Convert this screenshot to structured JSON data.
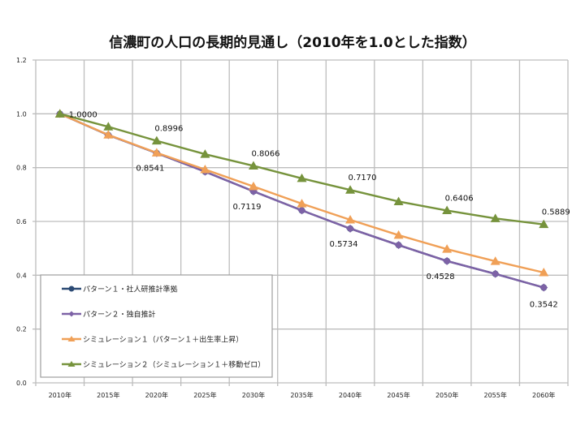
{
  "chart_data": {
    "type": "line",
    "title": "信濃町の人口の長期的見通し（2010年を1.0とした指数）",
    "xlabel": "",
    "ylabel": "",
    "categories": [
      "2010年",
      "2015年",
      "2020年",
      "2025年",
      "2030年",
      "2035年",
      "2040年",
      "2045年",
      "2050年",
      "2055年",
      "2060年"
    ],
    "ylim": [
      0.0,
      1.2
    ],
    "yticks": [
      "0.0",
      "0.2",
      "0.4",
      "0.6",
      "0.8",
      "1.0",
      "1.2"
    ],
    "grid": true,
    "legend_position": "bottom-left",
    "series": [
      {
        "name": "パターン１・社人研推計準拠",
        "color": "#2b4a74",
        "marker": "circle",
        "values": [
          1.0,
          0.921,
          0.8541,
          0.785,
          0.7119,
          0.641,
          0.5734,
          0.512,
          0.4528,
          0.405,
          0.3542
        ]
      },
      {
        "name": "パターン２・独自推計",
        "color": "#7d62a6",
        "marker": "diamond",
        "values": [
          1.0,
          0.921,
          0.8541,
          0.785,
          0.7119,
          0.641,
          0.5734,
          0.512,
          0.4528,
          0.405,
          0.3542
        ]
      },
      {
        "name": "シミュレーション１（パターン１＋出生率上昇）",
        "color": "#f0a057",
        "marker": "triangle",
        "values": [
          1.0,
          0.922,
          0.855,
          0.793,
          0.73,
          0.666,
          0.606,
          0.549,
          0.497,
          0.452,
          0.41
        ]
      },
      {
        "name": "シミュレーション２（シミュレーション１＋移動ゼロ）",
        "color": "#76933c",
        "marker": "triangle",
        "values": [
          1.0,
          0.952,
          0.8996,
          0.85,
          0.8066,
          0.76,
          0.717,
          0.674,
          0.6406,
          0.611,
          0.5889
        ]
      }
    ],
    "data_labels": [
      {
        "category": "2010年",
        "text": "1.0000",
        "series": "シミュレーション２（シミュレーション１＋移動ゼロ）"
      },
      {
        "category": "2020年",
        "text": "0.8996",
        "series": "シミュレーション２（シミュレーション１＋移動ゼロ）"
      },
      {
        "category": "2030年",
        "text": "0.8066",
        "series": "シミュレーション２（シミュレーション１＋移動ゼロ）"
      },
      {
        "category": "2040年",
        "text": "0.7170",
        "series": "シミュレーション２（シミュレーション１＋移動ゼロ）"
      },
      {
        "category": "2050年",
        "text": "0.6406",
        "series": "シミュレーション２（シミュレーション１＋移動ゼロ）"
      },
      {
        "category": "2060年",
        "text": "0.5889",
        "series": "シミュレーション２（シミュレーション１＋移動ゼロ）"
      },
      {
        "category": "2020年",
        "text": "0.8541",
        "series": "パターン１・社人研推計準拠"
      },
      {
        "category": "2030年",
        "text": "0.7119",
        "series": "パターン１・社人研推計準拠"
      },
      {
        "category": "2040年",
        "text": "0.5734",
        "series": "パターン１・社人研推計準拠"
      },
      {
        "category": "2050年",
        "text": "0.4528",
        "series": "パターン１・社人研推計準拠"
      },
      {
        "category": "2060年",
        "text": "0.3542",
        "series": "パターン１・社人研推計準拠"
      }
    ]
  }
}
